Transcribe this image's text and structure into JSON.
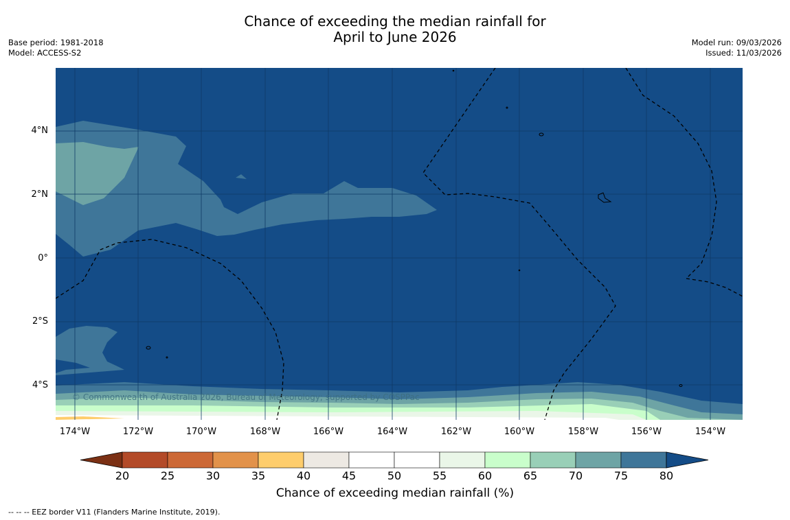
{
  "title": {
    "line1": "Chance of exceeding the median rainfall for",
    "line2": "April to June 2026"
  },
  "meta_left": {
    "base_period": "Base period: 1981-2018",
    "model": "Model: ACCESS-S2"
  },
  "meta_right": {
    "model_run": "Model run: 09/03/2026",
    "issued": "Issued: 11/03/2026"
  },
  "map": {
    "lat_labels": [
      "4°N",
      "2°N",
      "0°",
      "2°S",
      "4°S"
    ],
    "lon_labels": [
      "174°W",
      "172°W",
      "170°W",
      "168°W",
      "166°W",
      "164°W",
      "162°W",
      "160°W",
      "158°W",
      "156°W",
      "154°W"
    ],
    "copyright": "© Commonwealth of Australia 2026, Bureau of Meteorology; supported by COSPPac",
    "colors": {
      "ocean_fill": "#144c87",
      "contour_70_75": "#3f7699",
      "contour_65_70": "#6ea4a5",
      "grid": "#0e3a66"
    }
  },
  "colorbar": {
    "title": "Chance of exceeding median rainfall (%)",
    "ticks": [
      "20",
      "25",
      "30",
      "35",
      "40",
      "45",
      "50",
      "55",
      "60",
      "65",
      "70",
      "75",
      "80"
    ],
    "colors": [
      "#7b3014",
      "#b34a28",
      "#cc6836",
      "#e2924a",
      "#fecd6c",
      "#ede9e3",
      "#ffffff",
      "#ffffff",
      "#eaf6e8",
      "#c9fecb",
      "#99cfb7",
      "#6ea4a5",
      "#3f7699",
      "#144c87"
    ]
  },
  "footnote": "--  --  -- EEZ border V11 (Flanders Marine Institute, 2019)."
}
